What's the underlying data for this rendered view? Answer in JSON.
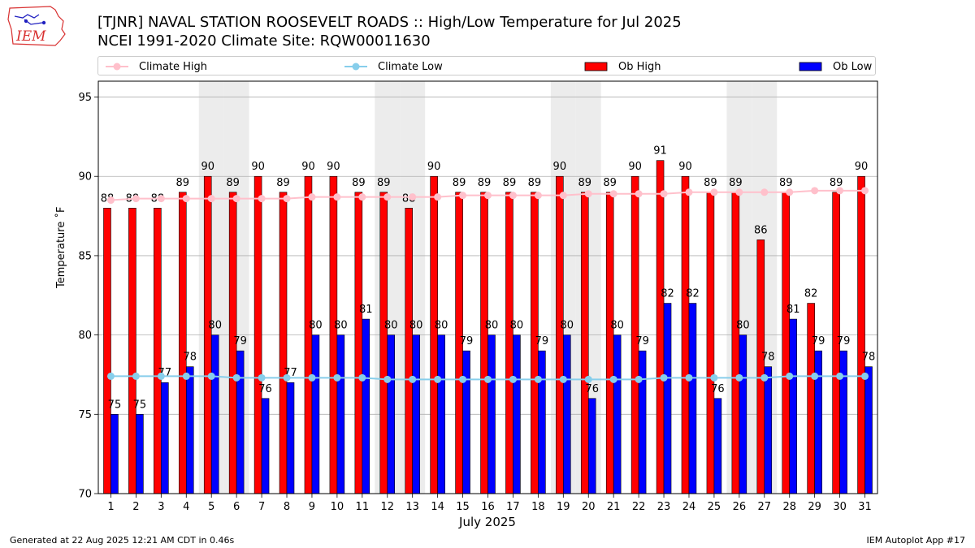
{
  "header": {
    "title_line1": "[TJNR] NAVAL STATION ROOSEVELT ROADS :: High/Low Temperature for Jul 2025",
    "title_line2": "NCEI 1991-2020 Climate Site: RQW00011630",
    "logo_text": "IEM"
  },
  "footer": {
    "left": "Generated at 22 Aug 2025 12:21 AM CDT in 0.46s",
    "right": "IEM Autoplot App #17"
  },
  "colors": {
    "ob_high": "#ff0000",
    "ob_low": "#0000ff",
    "climate_high": "#ffc0cb",
    "climate_low": "#87ceeb",
    "weekend_shade": "#ececec",
    "grid": "#b0b0b0"
  },
  "chart_data": {
    "type": "bar",
    "xlabel": "July 2025",
    "ylabel": "Temperature ˚F",
    "ylim": [
      70,
      96
    ],
    "yticks": [
      70,
      75,
      80,
      85,
      90,
      95
    ],
    "grid": "horizontal",
    "legend_position": "top",
    "categories": [
      "1",
      "2",
      "3",
      "4",
      "5",
      "6",
      "7",
      "8",
      "9",
      "10",
      "11",
      "12",
      "13",
      "14",
      "15",
      "16",
      "17",
      "18",
      "19",
      "20",
      "21",
      "22",
      "23",
      "24",
      "25",
      "26",
      "27",
      "28",
      "29",
      "30",
      "31"
    ],
    "shaded_days": [
      5,
      6,
      12,
      13,
      19,
      20,
      26,
      27
    ],
    "series": [
      {
        "name": "Ob High",
        "kind": "bar",
        "color": "#ff0000",
        "values": [
          88,
          88,
          88,
          89,
          90,
          89,
          90,
          89,
          90,
          90,
          89,
          89,
          88,
          90,
          89,
          89,
          89,
          89,
          90,
          89,
          89,
          90,
          91,
          90,
          89,
          89,
          86,
          89,
          82,
          89,
          90
        ]
      },
      {
        "name": "Ob Low",
        "kind": "bar",
        "color": "#0000ff",
        "values": [
          75,
          75,
          77,
          78,
          80,
          79,
          76,
          77,
          80,
          80,
          81,
          80,
          80,
          80,
          79,
          80,
          80,
          79,
          80,
          76,
          80,
          79,
          82,
          82,
          76,
          80,
          78,
          81,
          79,
          79,
          78
        ]
      },
      {
        "name": "Climate High",
        "kind": "line",
        "color": "#ffc0cb",
        "values": [
          88.5,
          88.6,
          88.6,
          88.6,
          88.6,
          88.6,
          88.6,
          88.6,
          88.7,
          88.7,
          88.7,
          88.7,
          88.7,
          88.7,
          88.8,
          88.8,
          88.8,
          88.8,
          88.8,
          88.9,
          88.9,
          88.9,
          88.9,
          89.0,
          89.0,
          89.0,
          89.0,
          89.0,
          89.1,
          89.1,
          89.1
        ]
      },
      {
        "name": "Climate Low",
        "kind": "line",
        "color": "#87ceeb",
        "values": [
          77.4,
          77.4,
          77.4,
          77.4,
          77.4,
          77.3,
          77.3,
          77.3,
          77.3,
          77.3,
          77.3,
          77.2,
          77.2,
          77.2,
          77.2,
          77.2,
          77.2,
          77.2,
          77.2,
          77.2,
          77.2,
          77.2,
          77.3,
          77.3,
          77.3,
          77.3,
          77.3,
          77.4,
          77.4,
          77.4,
          77.4
        ]
      }
    ]
  }
}
